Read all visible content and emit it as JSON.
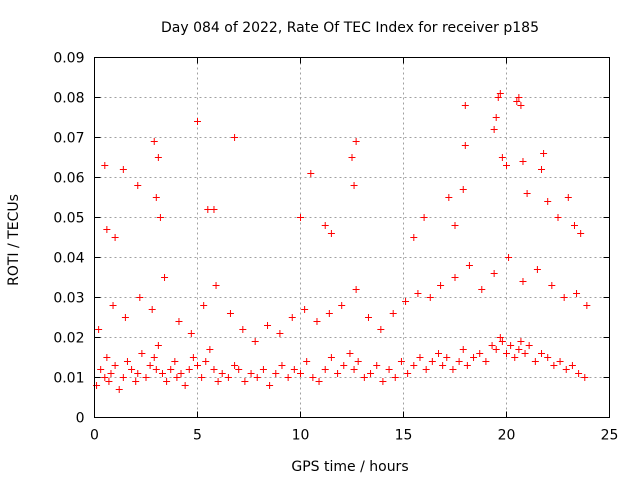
{
  "chart_data": {
    "type": "scatter",
    "title": "Day 084 of 2022, Rate Of TEC Index for receiver p185",
    "xlabel": "GPS time / hours",
    "ylabel": "ROTI / TECUs",
    "xlim": [
      0,
      25
    ],
    "ylim": [
      0,
      0.09
    ],
    "xticks": [
      "0",
      "5",
      "10",
      "15",
      "20",
      "25"
    ],
    "yticks": [
      "0",
      "0.01",
      "0.02",
      "0.03",
      "0.04",
      "0.05",
      "0.06",
      "0.07",
      "0.08",
      "0.09"
    ],
    "grid": true,
    "marker": "plus",
    "color": "#ff0000",
    "series": [
      {
        "x": [
          0.1,
          0.3,
          0.5,
          0.6,
          0.7,
          0.8,
          1.0,
          1.2,
          1.4,
          1.6,
          1.8,
          2.0,
          2.1,
          2.3,
          2.5,
          2.7,
          2.9,
          3.0,
          3.1,
          3.3,
          3.5,
          3.7,
          3.9,
          4.0,
          4.2,
          4.4,
          4.6,
          4.8,
          5.0,
          5.2,
          5.4,
          5.6,
          5.8,
          6.0,
          6.2,
          6.5,
          6.8,
          7.0,
          7.3,
          7.6,
          7.9,
          8.2,
          8.5,
          8.8,
          9.1,
          9.4,
          9.7,
          10.0,
          10.3,
          10.6,
          10.9,
          11.2,
          11.5,
          11.8,
          12.1,
          12.4,
          12.6,
          12.8,
          13.1,
          13.4,
          13.7,
          14.0,
          14.3,
          14.6,
          14.9,
          15.2,
          15.5,
          15.8,
          16.1,
          16.4,
          16.7,
          16.9,
          17.1,
          17.4,
          17.7,
          17.9,
          18.1,
          18.4,
          18.7,
          19.0,
          19.3,
          19.5,
          19.7,
          19.8,
          20.0,
          20.2,
          20.4,
          20.6,
          20.7,
          20.9,
          21.1,
          21.4,
          21.7,
          22.0,
          22.3,
          22.6,
          22.9,
          23.2,
          23.5,
          23.8,
          0.2,
          0.9,
          1.5,
          2.2,
          2.8,
          3.4,
          4.1,
          4.7,
          5.3,
          5.9,
          6.6,
          7.2,
          7.8,
          8.4,
          9.0,
          9.6,
          10.2,
          10.8,
          11.4,
          12.0,
          12.7,
          13.3,
          13.9,
          14.5,
          15.1,
          15.7,
          16.3,
          16.8,
          17.5,
          18.2,
          18.8,
          19.4,
          20.1,
          20.8,
          21.5,
          22.2,
          22.8,
          23.4,
          23.9,
          0.5,
          0.6,
          1.0,
          1.4,
          2.1,
          2.9,
          3.0,
          3.1,
          3.2,
          5.0,
          5.5,
          5.8,
          6.8,
          10.0,
          10.5,
          11.2,
          11.5,
          12.5,
          12.6,
          12.7,
          15.5,
          16.0,
          17.2,
          17.5,
          17.9,
          18.0,
          18.0,
          19.4,
          19.5,
          19.6,
          19.7,
          19.8,
          20.0,
          20.5,
          20.6,
          20.7,
          20.8,
          21.0,
          21.7,
          21.8,
          22.0,
          22.5,
          23.0,
          23.3,
          23.6
        ],
        "y": [
          0.008,
          0.012,
          0.01,
          0.015,
          0.009,
          0.011,
          0.013,
          0.007,
          0.01,
          0.014,
          0.012,
          0.009,
          0.011,
          0.016,
          0.01,
          0.013,
          0.015,
          0.012,
          0.018,
          0.011,
          0.009,
          0.012,
          0.014,
          0.01,
          0.011,
          0.008,
          0.012,
          0.015,
          0.013,
          0.01,
          0.014,
          0.017,
          0.012,
          0.009,
          0.011,
          0.01,
          0.013,
          0.012,
          0.009,
          0.011,
          0.01,
          0.012,
          0.008,
          0.011,
          0.013,
          0.01,
          0.012,
          0.011,
          0.014,
          0.01,
          0.009,
          0.012,
          0.015,
          0.011,
          0.013,
          0.016,
          0.012,
          0.014,
          0.01,
          0.011,
          0.013,
          0.009,
          0.012,
          0.01,
          0.014,
          0.011,
          0.013,
          0.015,
          0.012,
          0.014,
          0.016,
          0.013,
          0.015,
          0.012,
          0.014,
          0.017,
          0.013,
          0.015,
          0.016,
          0.014,
          0.018,
          0.017,
          0.02,
          0.019,
          0.016,
          0.018,
          0.015,
          0.017,
          0.019,
          0.016,
          0.018,
          0.014,
          0.016,
          0.015,
          0.013,
          0.014,
          0.012,
          0.013,
          0.011,
          0.01,
          0.022,
          0.028,
          0.025,
          0.03,
          0.027,
          0.035,
          0.024,
          0.021,
          0.028,
          0.033,
          0.026,
          0.022,
          0.019,
          0.023,
          0.021,
          0.025,
          0.027,
          0.024,
          0.026,
          0.028,
          0.032,
          0.025,
          0.022,
          0.026,
          0.029,
          0.031,
          0.03,
          0.033,
          0.035,
          0.038,
          0.032,
          0.036,
          0.04,
          0.034,
          0.037,
          0.033,
          0.03,
          0.031,
          0.028,
          0.063,
          0.047,
          0.045,
          0.062,
          0.058,
          0.069,
          0.055,
          0.065,
          0.05,
          0.074,
          0.052,
          0.052,
          0.07,
          0.05,
          0.061,
          0.048,
          0.046,
          0.065,
          0.058,
          0.069,
          0.045,
          0.05,
          0.055,
          0.048,
          0.057,
          0.068,
          0.078,
          0.072,
          0.075,
          0.08,
          0.081,
          0.065,
          0.063,
          0.079,
          0.08,
          0.078,
          0.064,
          0.056,
          0.062,
          0.066,
          0.054,
          0.05,
          0.055,
          0.048,
          0.046
        ]
      }
    ]
  }
}
